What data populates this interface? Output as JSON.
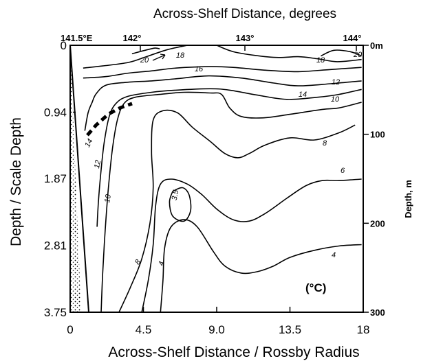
{
  "chart_data": {
    "type": "contour",
    "top_axis": {
      "title": "Across-Shelf Distance, degrees",
      "tick_labels": [
        "141.5°E",
        "142°",
        "143°",
        "144°"
      ]
    },
    "bottom_axis": {
      "title": "Across-Shelf Distance / Rossby Radius",
      "tick_labels": [
        "0",
        "4.5",
        "9.0",
        "13.5",
        "18"
      ],
      "ticks": [
        0,
        4.5,
        9.0,
        13.5,
        18
      ],
      "range": [
        0,
        18
      ]
    },
    "left_axis": {
      "title": "Depth / Scale Depth",
      "tick_labels": [
        "0",
        "0.94",
        "1.87",
        "2.81",
        "3.75"
      ],
      "ticks": [
        0,
        0.94,
        1.87,
        2.81,
        3.75
      ],
      "range": [
        0,
        3.75
      ]
    },
    "right_axis": {
      "title": "Depth, m",
      "tick_labels": [
        "0m",
        "100",
        "200",
        "300"
      ],
      "ticks": [
        0,
        100,
        200,
        300
      ],
      "range": [
        0,
        300
      ]
    },
    "unit_label": "(°C)",
    "contour_levels": [
      "20",
      "18",
      "16",
      "14",
      "12",
      "10",
      "8",
      "6",
      "4",
      "3.5"
    ],
    "contours": [
      {
        "level": 20,
        "label": "20",
        "points": [
          [
            3.8,
            0.12
          ],
          [
            4.6,
            0.07
          ],
          [
            5.2,
            0.04
          ],
          [
            5.5,
            0.05
          ]
        ]
      },
      {
        "level": 20,
        "label": "20",
        "points": [
          [
            15.4,
            0.15
          ],
          [
            16.2,
            0.07
          ],
          [
            17.2,
            0.09
          ],
          [
            17.9,
            0.15
          ]
        ]
      },
      {
        "level": 18,
        "label": "18",
        "points": [
          [
            0.8,
            0.32
          ],
          [
            2.0,
            0.29
          ],
          [
            3.6,
            0.24
          ],
          [
            4.8,
            0.15
          ],
          [
            6.0,
            0.06
          ],
          [
            7.2,
            0.0
          ]
        ]
      },
      {
        "level": 18,
        "label": "18",
        "points": [
          [
            9.0,
            0.0
          ],
          [
            10.2,
            0.1
          ],
          [
            12.5,
            0.17
          ],
          [
            14.0,
            0.16
          ],
          [
            15.2,
            0.19
          ],
          [
            16.4,
            0.23
          ],
          [
            17.9,
            0.2
          ]
        ]
      },
      {
        "level": 16,
        "label": "16",
        "points": [
          [
            0.8,
            0.46
          ],
          [
            2.2,
            0.44
          ],
          [
            3.6,
            0.39
          ],
          [
            5.0,
            0.36
          ],
          [
            6.5,
            0.32
          ],
          [
            8.5,
            0.3
          ],
          [
            10.0,
            0.31
          ],
          [
            12.0,
            0.35
          ],
          [
            14.0,
            0.37
          ],
          [
            16.0,
            0.34
          ],
          [
            17.9,
            0.31
          ]
        ]
      },
      {
        "level": 14,
        "label": "14",
        "points": [
          [
            0.9,
            1.2
          ],
          [
            1.1,
            0.95
          ],
          [
            1.35,
            0.8
          ],
          [
            1.6,
            0.68
          ],
          [
            2.2,
            0.56
          ],
          [
            3.5,
            0.52
          ],
          [
            5.0,
            0.5
          ],
          [
            6.5,
            0.47
          ],
          [
            8.5,
            0.43
          ],
          [
            10.5,
            0.46
          ],
          [
            12.5,
            0.53
          ],
          [
            14.0,
            0.57
          ],
          [
            16.0,
            0.54
          ],
          [
            17.9,
            0.5
          ]
        ]
      },
      {
        "level": 12,
        "label": "12",
        "points": [
          [
            1.65,
            2.55
          ],
          [
            1.75,
            2.15
          ],
          [
            1.9,
            1.75
          ],
          [
            2.1,
            1.35
          ],
          [
            2.4,
            1.0
          ],
          [
            2.8,
            0.82
          ],
          [
            3.5,
            0.72
          ],
          [
            5.0,
            0.66
          ],
          [
            6.5,
            0.63
          ],
          [
            8.6,
            0.61
          ],
          [
            9.8,
            0.63
          ],
          [
            11.5,
            0.7
          ],
          [
            13.3,
            0.76
          ],
          [
            15.2,
            0.73
          ],
          [
            16.5,
            0.69
          ],
          [
            17.9,
            0.62
          ]
        ]
      },
      {
        "level": 10,
        "label": "10",
        "points": [
          [
            1.9,
            3.75
          ],
          [
            2.0,
            3.2
          ],
          [
            2.15,
            2.6
          ],
          [
            2.35,
            2.0
          ],
          [
            2.6,
            1.45
          ],
          [
            2.9,
            1.05
          ],
          [
            3.3,
            0.82
          ],
          [
            4.0,
            0.73
          ],
          [
            5.5,
            0.69
          ],
          [
            7.0,
            0.66
          ],
          [
            8.6,
            0.67
          ],
          [
            9.3,
            0.69
          ],
          [
            9.8,
            0.88
          ],
          [
            10.5,
            1.0
          ],
          [
            11.8,
            1.02
          ],
          [
            13.5,
            0.97
          ],
          [
            15.5,
            0.9
          ],
          [
            16.5,
            0.88
          ],
          [
            17.9,
            0.8
          ]
        ]
      },
      {
        "level": 8,
        "label": "8",
        "points": [
          [
            3.0,
            3.75
          ],
          [
            3.7,
            3.4
          ],
          [
            4.4,
            3.0
          ],
          [
            4.9,
            2.5
          ],
          [
            5.1,
            2.0
          ],
          [
            5.0,
            1.5
          ],
          [
            5.1,
            1.05
          ],
          [
            5.7,
            0.92
          ],
          [
            6.6,
            0.95
          ],
          [
            7.5,
            1.15
          ],
          [
            8.6,
            1.35
          ],
          [
            9.5,
            1.52
          ],
          [
            10.3,
            1.58
          ],
          [
            11.0,
            1.52
          ],
          [
            12.0,
            1.4
          ],
          [
            13.5,
            1.3
          ],
          [
            15.0,
            1.33
          ],
          [
            16.5,
            1.23
          ],
          [
            17.5,
            1.12
          ]
        ]
      },
      {
        "level": 6,
        "label": "6",
        "points": [
          [
            4.4,
            3.75
          ],
          [
            4.8,
            3.3
          ],
          [
            5.1,
            2.8
          ],
          [
            5.25,
            2.25
          ],
          [
            5.55,
            1.95
          ],
          [
            6.2,
            1.88
          ],
          [
            7.2,
            1.95
          ],
          [
            8.1,
            2.1
          ],
          [
            9.0,
            2.3
          ],
          [
            10.0,
            2.45
          ],
          [
            11.0,
            2.47
          ],
          [
            12.0,
            2.36
          ],
          [
            13.3,
            2.15
          ],
          [
            14.5,
            1.97
          ],
          [
            15.5,
            1.9
          ],
          [
            16.5,
            1.9
          ],
          [
            17.9,
            1.88
          ]
        ]
      },
      {
        "level": 4,
        "label": "4",
        "points": [
          [
            5.55,
            3.75
          ],
          [
            5.7,
            3.3
          ],
          [
            5.8,
            2.85
          ],
          [
            6.2,
            2.55
          ],
          [
            7.0,
            2.45
          ],
          [
            7.8,
            2.55
          ],
          [
            8.8,
            2.9
          ],
          [
            9.5,
            3.1
          ],
          [
            10.5,
            3.2
          ],
          [
            11.5,
            3.18
          ],
          [
            12.5,
            3.1
          ],
          [
            13.5,
            2.98
          ],
          [
            15.0,
            2.88
          ],
          [
            16.5,
            2.82
          ],
          [
            17.9,
            2.8
          ]
        ]
      },
      {
        "level": 3.5,
        "label": "3.5",
        "points": [
          [
            6.3,
            2.05
          ],
          [
            6.1,
            2.2
          ],
          [
            6.3,
            2.4
          ],
          [
            7.0,
            2.47
          ],
          [
            7.4,
            2.32
          ],
          [
            7.3,
            2.1
          ],
          [
            6.9,
            2.0
          ],
          [
            6.3,
            2.05
          ]
        ]
      }
    ]
  }
}
